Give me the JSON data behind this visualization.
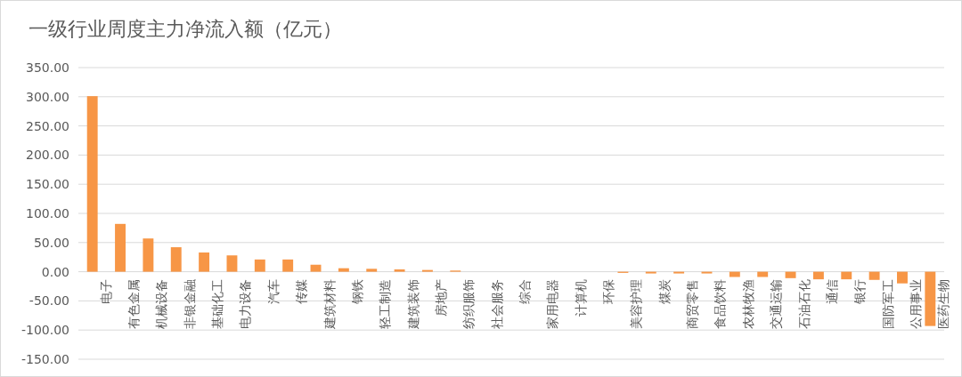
{
  "chart_data": {
    "type": "bar",
    "title": "一级行业周度主力净流入额（亿元）",
    "categories": [
      "电子",
      "有色金属",
      "机械设备",
      "非银金融",
      "基础化工",
      "电力设备",
      "汽车",
      "传媒",
      "建筑材料",
      "钢铁",
      "轻工制造",
      "建筑装饰",
      "房地产",
      "纺织服饰",
      "社会服务",
      "综合",
      "家用电器",
      "计算机",
      "环保",
      "美容护理",
      "煤炭",
      "商贸零售",
      "食品饮料",
      "农林牧渔",
      "交通运输",
      "石油石化",
      "通信",
      "银行",
      "国防军工",
      "公用事业",
      "医药生物"
    ],
    "values": [
      301,
      82,
      57,
      42,
      33,
      28,
      21,
      21,
      12,
      6,
      5,
      4,
      3,
      2,
      null,
      null,
      null,
      null,
      null,
      -2,
      -3,
      -3,
      -3,
      -9,
      -9,
      -11,
      -13,
      -13,
      -14,
      -20,
      -93
    ],
    "color": "#f79646",
    "ylim": [
      -150,
      350
    ],
    "yticks": [
      {
        "value": -150,
        "label": "-150.00"
      },
      {
        "value": -100,
        "label": "-100.00"
      },
      {
        "value": -50,
        "label": "-50.00"
      },
      {
        "value": 0,
        "label": "0.00"
      },
      {
        "value": 50,
        "label": "50.00"
      },
      {
        "value": 100,
        "label": "100.00"
      },
      {
        "value": 150,
        "label": "150.00"
      },
      {
        "value": 200,
        "label": "200.00"
      },
      {
        "value": 250,
        "label": "250.00"
      },
      {
        "value": 300,
        "label": "300.00"
      },
      {
        "value": 350,
        "label": "350.00"
      }
    ],
    "grid": "y"
  }
}
